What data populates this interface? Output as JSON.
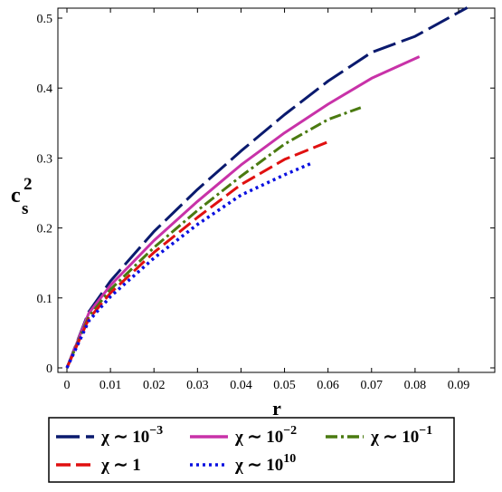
{
  "chart_data": {
    "type": "line",
    "xlabel": "r",
    "ylabel": {
      "base": "c",
      "sup": "2",
      "sub": "s"
    },
    "xlim": [
      0,
      0.097
    ],
    "ylim": [
      0,
      0.52
    ],
    "x_ticks": [
      0,
      0.01,
      0.02,
      0.03,
      0.04,
      0.05,
      0.06,
      0.07,
      0.08,
      0.09
    ],
    "y_ticks": [
      0,
      0.1,
      0.2,
      0.3,
      0.4,
      0.5
    ],
    "grid": false,
    "legend_position": "below-plot",
    "series": [
      {
        "name": "χ ∼ 10^-3",
        "legend": {
          "prefix": "χ ∼ 10",
          "sup": "−3"
        },
        "color": "#0a1a6e",
        "dash": "26,7",
        "x": [
          0,
          0.005,
          0.01,
          0.02,
          0.03,
          0.04,
          0.05,
          0.06,
          0.07,
          0.08,
          0.092
        ],
        "y": [
          0,
          0.08,
          0.124,
          0.195,
          0.255,
          0.31,
          0.362,
          0.41,
          0.451,
          0.474,
          0.515
        ]
      },
      {
        "name": "χ ∼ 10^-2",
        "legend": {
          "prefix": "χ ∼ 10",
          "sup": "−2"
        },
        "color": "#c832a8",
        "dash": "",
        "x": [
          0,
          0.005,
          0.01,
          0.02,
          0.03,
          0.04,
          0.05,
          0.06,
          0.07,
          0.081
        ],
        "y": [
          0,
          0.078,
          0.118,
          0.182,
          0.238,
          0.29,
          0.336,
          0.377,
          0.414,
          0.445
        ]
      },
      {
        "name": "χ ∼ 10^-1",
        "legend": {
          "prefix": "χ ∼ 10",
          "sup": "−1"
        },
        "color": "#4a7a10",
        "dash": "13,4,3,4",
        "x": [
          0,
          0.005,
          0.01,
          0.02,
          0.03,
          0.04,
          0.05,
          0.06,
          0.0675
        ],
        "y": [
          0,
          0.073,
          0.112,
          0.172,
          0.225,
          0.274,
          0.32,
          0.355,
          0.372
        ]
      },
      {
        "name": "χ ∼ 1",
        "legend": {
          "prefix": "χ ∼ 1",
          "sup": ""
        },
        "color": "#e01010",
        "dash": "16,6",
        "x": [
          0,
          0.005,
          0.01,
          0.02,
          0.03,
          0.04,
          0.05,
          0.06
        ],
        "y": [
          0,
          0.07,
          0.107,
          0.165,
          0.215,
          0.262,
          0.298,
          0.323
        ]
      },
      {
        "name": "χ ∼ 10^10",
        "legend": {
          "prefix": "χ ∼ 10",
          "sup": "10"
        },
        "color": "#0a10e0",
        "dash": "3,4",
        "x": [
          0,
          0.005,
          0.01,
          0.02,
          0.03,
          0.04,
          0.05,
          0.056
        ],
        "y": [
          0,
          0.067,
          0.102,
          0.157,
          0.205,
          0.247,
          0.276,
          0.292
        ]
      }
    ],
    "legend_order": [
      0,
      1,
      2,
      3,
      4
    ]
  }
}
